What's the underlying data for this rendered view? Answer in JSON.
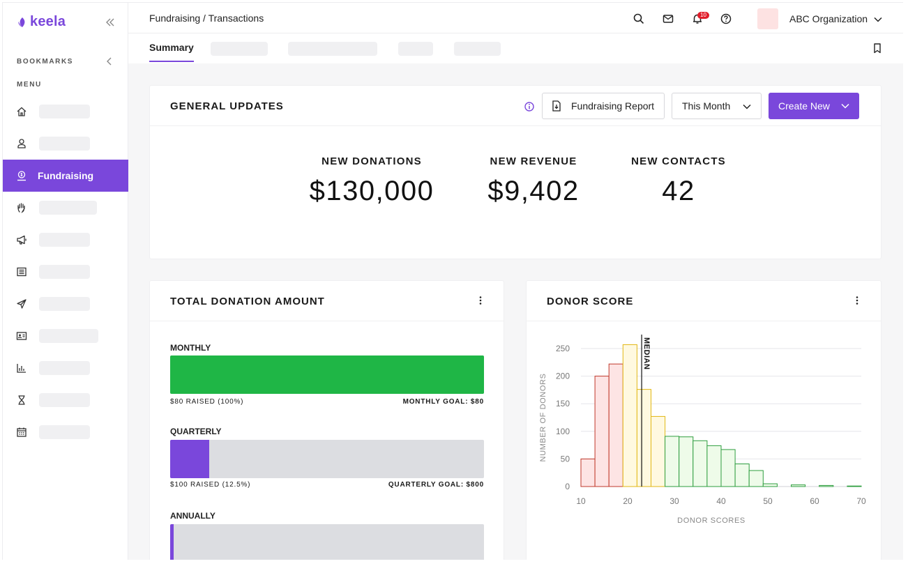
{
  "app": {
    "logo_text": "keela"
  },
  "sidebar": {
    "bookmarks_label": "BOOKMARKS",
    "menu_label": "MENU",
    "active_item_label": "Fundraising"
  },
  "topbar": {
    "breadcrumb": "Fundraising / Transactions",
    "notification_count": "10",
    "org_name": "ABC Organization"
  },
  "tabs": {
    "active_label": "Summary"
  },
  "general_updates": {
    "title": "GENERAL UPDATES",
    "report_button": "Fundraising Report",
    "period_select": "This Month",
    "create_button": "Create New",
    "stats": [
      {
        "label": "NEW DONATIONS",
        "value": "$130,000"
      },
      {
        "label": "NEW REVENUE",
        "value": "$9,402"
      },
      {
        "label": "NEW CONTACTS",
        "value": "42"
      }
    ]
  },
  "total_donation": {
    "title": "TOTAL DONATION AMOUNT",
    "goals": [
      {
        "name": "MONTHLY",
        "raised_text": "$80 RAISED (100%)",
        "goal_text": "MONTHLY GOAL: $80",
        "progress": 1.0,
        "color": "#1fb646"
      },
      {
        "name": "QUARTERLY",
        "raised_text": "$100 RAISED (12.5%)",
        "goal_text": "QUARTERLY GOAL: $800",
        "progress": 0.125,
        "color": "#7a47db"
      },
      {
        "name": "ANNUALLY",
        "progress": 0.012,
        "color": "#7a47db"
      }
    ]
  },
  "donor_score": {
    "title": "DONOR SCORE"
  },
  "chart_data": {
    "type": "bar",
    "title": "DONOR SCORE",
    "xlabel": "DONOR SCORES",
    "ylabel": "NUMBER OF DONORS",
    "xlim": [
      10,
      70
    ],
    "ylim": [
      0,
      250
    ],
    "xticks": [
      10,
      20,
      30,
      40,
      50,
      60,
      70
    ],
    "yticks": [
      0,
      50,
      100,
      150,
      200,
      250
    ],
    "bin_width": 3,
    "bins": [
      {
        "x": 10,
        "value": 50,
        "band": "low"
      },
      {
        "x": 13,
        "value": 200,
        "band": "low"
      },
      {
        "x": 16,
        "value": 222,
        "band": "low"
      },
      {
        "x": 19,
        "value": 257,
        "band": "mid"
      },
      {
        "x": 22,
        "value": 176,
        "band": "mid"
      },
      {
        "x": 25,
        "value": 127,
        "band": "mid"
      },
      {
        "x": 28,
        "value": 91,
        "band": "high"
      },
      {
        "x": 31,
        "value": 90,
        "band": "high"
      },
      {
        "x": 34,
        "value": 83,
        "band": "high"
      },
      {
        "x": 37,
        "value": 74,
        "band": "high"
      },
      {
        "x": 40,
        "value": 67,
        "band": "high"
      },
      {
        "x": 43,
        "value": 41,
        "band": "high"
      },
      {
        "x": 46,
        "value": 29,
        "band": "high"
      },
      {
        "x": 49,
        "value": 5,
        "band": "high"
      },
      {
        "x": 52,
        "value": 0,
        "band": "high"
      },
      {
        "x": 55,
        "value": 3,
        "band": "high"
      },
      {
        "x": 58,
        "value": 0,
        "band": "high"
      },
      {
        "x": 61,
        "value": 2,
        "band": "high"
      },
      {
        "x": 64,
        "value": 0,
        "band": "high"
      },
      {
        "x": 67,
        "value": 1,
        "band": "high"
      }
    ],
    "median": 23,
    "median_label": "MEDIAN",
    "band_colors": {
      "low": {
        "fill": "#fde4e4",
        "stroke": "#c0392b"
      },
      "mid": {
        "fill": "#fff9e0",
        "stroke": "#e2b714"
      },
      "high": {
        "fill": "#eefbe9",
        "stroke": "#2e9e3f"
      }
    },
    "grid": true
  }
}
